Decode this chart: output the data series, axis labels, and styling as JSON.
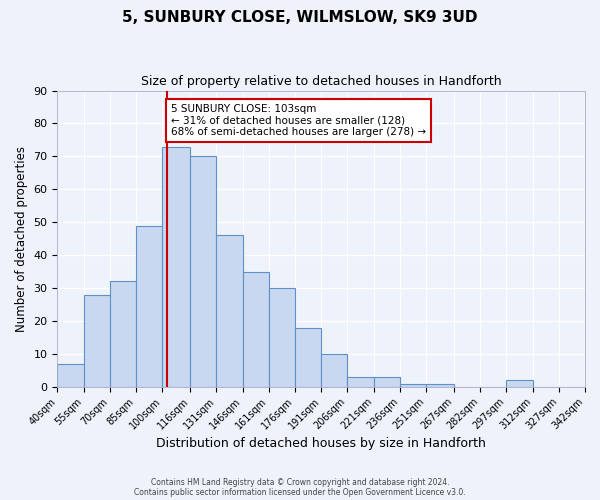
{
  "title": "5, SUNBURY CLOSE, WILMSLOW, SK9 3UD",
  "subtitle": "Size of property relative to detached houses in Handforth",
  "xlabel": "Distribution of detached houses by size in Handforth",
  "ylabel": "Number of detached properties",
  "bar_heights": [
    7,
    28,
    32,
    49,
    73,
    70,
    46,
    35,
    30,
    18,
    10,
    3,
    3,
    1,
    1,
    0,
    0,
    2,
    0,
    0
  ],
  "bin_edges": [
    40,
    55,
    70,
    85,
    100,
    116,
    131,
    146,
    161,
    176,
    191,
    206,
    221,
    236,
    251,
    267,
    282,
    297,
    312,
    327,
    342
  ],
  "bin_labels": [
    "40sqm",
    "55sqm",
    "70sqm",
    "85sqm",
    "100sqm",
    "116sqm",
    "131sqm",
    "146sqm",
    "161sqm",
    "176sqm",
    "191sqm",
    "206sqm",
    "221sqm",
    "236sqm",
    "251sqm",
    "267sqm",
    "282sqm",
    "297sqm",
    "312sqm",
    "327sqm",
    "342sqm"
  ],
  "bar_color": "#c8d8f0",
  "bar_edge_color": "#6090c8",
  "vline_x": 103,
  "vline_color": "#cc0000",
  "ylim": [
    0,
    90
  ],
  "yticks": [
    0,
    10,
    20,
    30,
    40,
    50,
    60,
    70,
    80,
    90
  ],
  "annotation_title": "5 SUNBURY CLOSE: 103sqm",
  "annotation_line1": "← 31% of detached houses are smaller (128)",
  "annotation_line2": "68% of semi-detached houses are larger (278) →",
  "annotation_box_facecolor": "#ffffff",
  "annotation_box_edgecolor": "#cc0000",
  "footer1": "Contains HM Land Registry data © Crown copyright and database right 2024.",
  "footer2": "Contains public sector information licensed under the Open Government Licence v3.0.",
  "background_color": "#eef2fb",
  "grid_color": "#ffffff",
  "title_fontsize": 11,
  "subtitle_fontsize": 9,
  "xlabel_fontsize": 9,
  "ylabel_fontsize": 8.5
}
